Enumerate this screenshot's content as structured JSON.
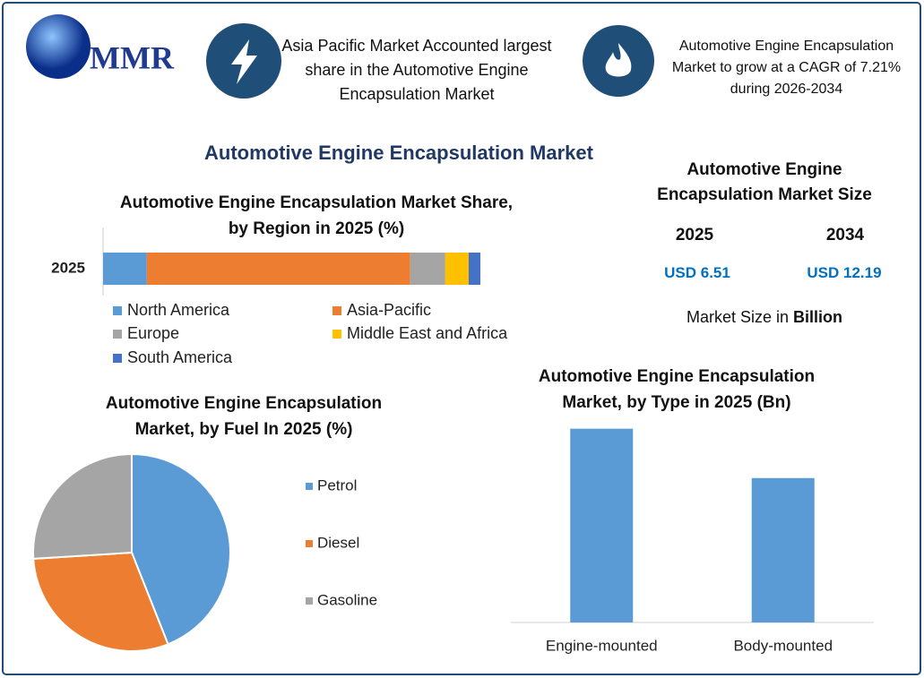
{
  "logo": "MMR",
  "highlights": [
    "Asia Pacific Market Accounted largest share in the Automotive Engine Encapsulation Market",
    "Automotive Engine Encapsulation Market to grow at a CAGR of 7.21% during 2026-2034"
  ],
  "title": "Automotive Engine Encapsulation Market",
  "market_size": {
    "title": "Automotive Engine Encapsulation Market Size",
    "years": [
      "2025",
      "2034"
    ],
    "values": [
      "USD 6.51",
      "USD 12.19"
    ],
    "note": "Market Size in",
    "unit": "Billion"
  },
  "chart_data": [
    {
      "type": "stacked_bar",
      "title": "Automotive Engine Encapsulation Market Share, by Region in 2025 (%)",
      "categories": [
        "2025"
      ],
      "xlim": [
        0,
        100
      ],
      "series": [
        {
          "name": "North America",
          "color": "#5b9bd5",
          "values": [
            11.6
          ]
        },
        {
          "name": "Asia-Pacific",
          "color": "#ed7d31",
          "values": [
            69.8
          ]
        },
        {
          "name": "Europe",
          "color": "#a5a5a5",
          "values": [
            9.3
          ]
        },
        {
          "name": "Middle East and Africa",
          "color": "#ffc000",
          "values": [
            6.2
          ]
        },
        {
          "name": "South America",
          "color": "#4472c4",
          "values": [
            3.1
          ]
        }
      ]
    },
    {
      "type": "pie",
      "title": "Automotive Engine Encapsulation Market, by Fuel In 2025 (%)",
      "categories": [
        "Petrol",
        "Diesel",
        "Gasoline"
      ],
      "values": [
        44,
        30,
        26
      ],
      "colors": [
        "#5b9bd5",
        "#ed7d31",
        "#a5a5a5"
      ]
    },
    {
      "type": "bar",
      "title": "Automotive Engine Encapsulation Market, by Type in 2025 (Bn)",
      "categories": [
        "Engine-mounted",
        "Body-mounted"
      ],
      "values": [
        3.73,
        2.78
      ],
      "color": "#5b9bd5",
      "ylim": [
        0,
        4
      ]
    }
  ]
}
